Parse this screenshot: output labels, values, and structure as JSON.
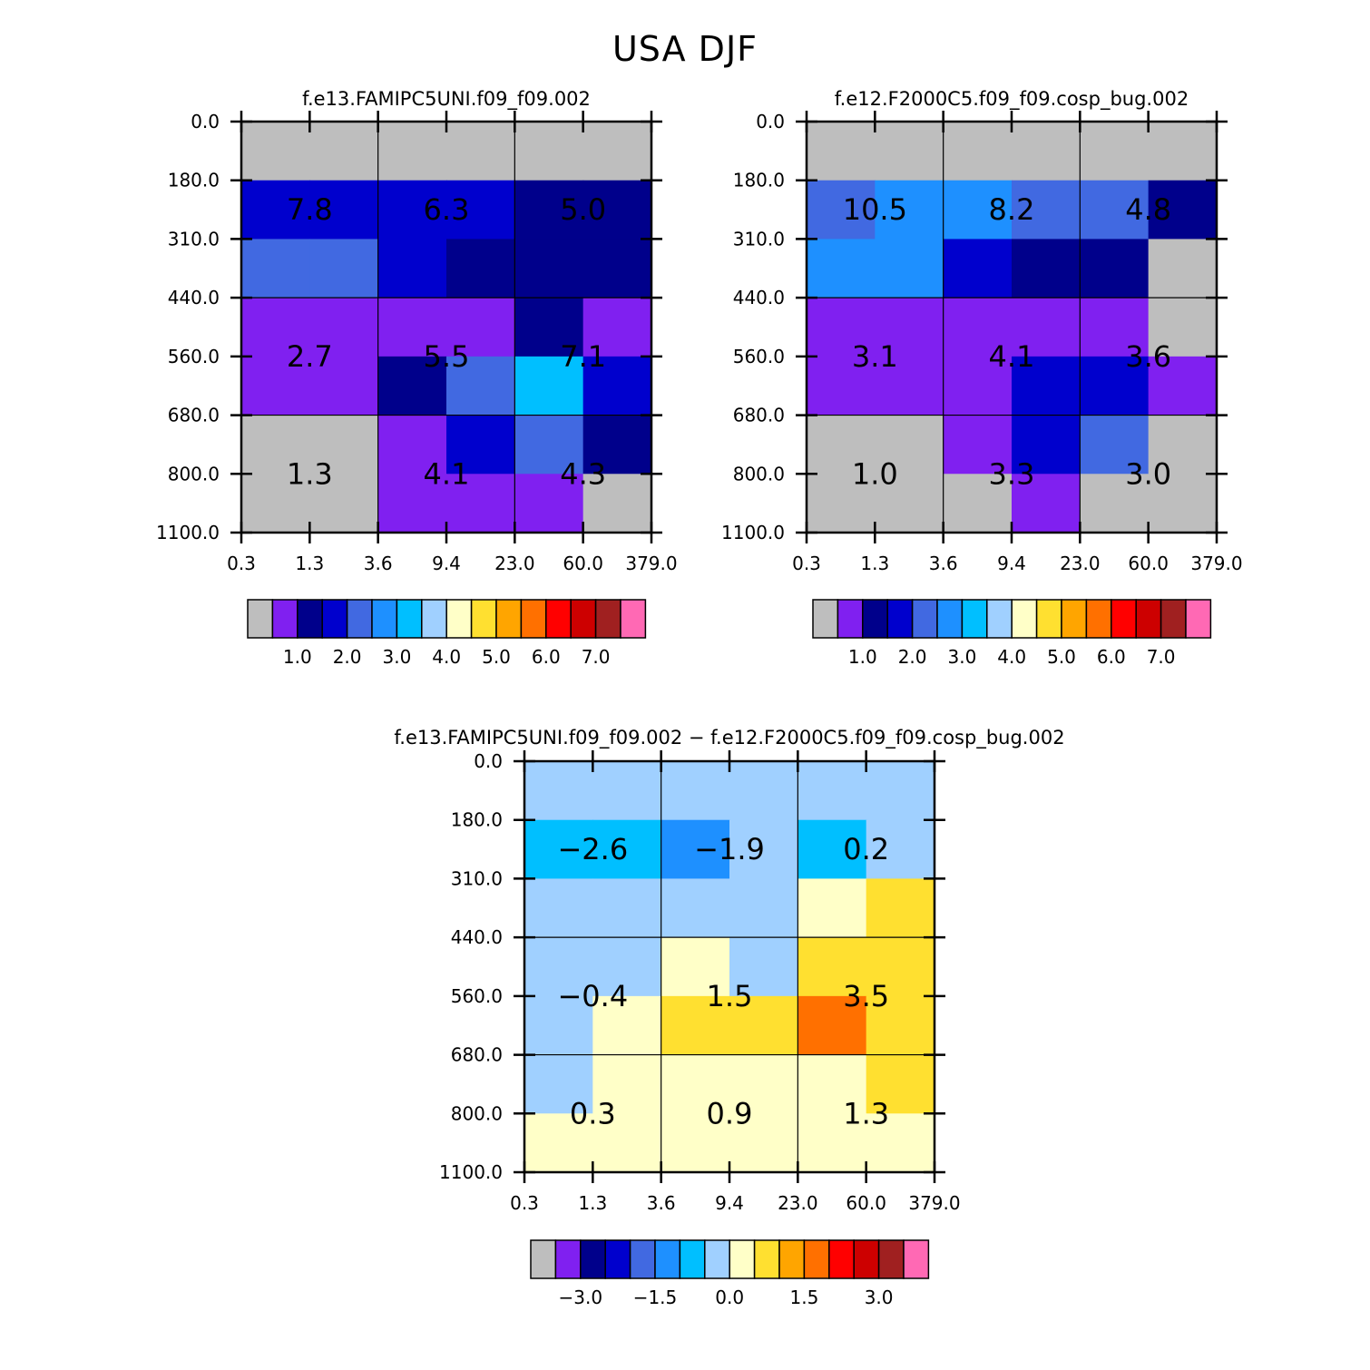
{
  "title": "USA DJF",
  "chart_data": [
    {
      "type": "heatmap",
      "title": "f.e13.FAMIPC5UNI.f09_f09.002",
      "xticks": [
        "0.3",
        "1.3",
        "3.6",
        "9.4",
        "23.0",
        "60.0",
        "379.0"
      ],
      "yticks": [
        "0.0",
        "180.0",
        "310.0",
        "440.0",
        "560.0",
        "680.0",
        "800.0",
        "1100.0"
      ],
      "cell_colors": [
        [
          "grey",
          "grey",
          "grey",
          "grey",
          "grey",
          "grey"
        ],
        [
          "blue",
          "blue",
          "blue",
          "blue",
          "navy",
          "navy"
        ],
        [
          "royalblue",
          "royalblue",
          "blue",
          "navy",
          "navy",
          "navy"
        ],
        [
          "purple",
          "purple",
          "purple",
          "purple",
          "navy",
          "purple"
        ],
        [
          "purple",
          "purple",
          "navy",
          "royalblue",
          "deepskyblue",
          "blue"
        ],
        [
          "grey",
          "grey",
          "purple",
          "blue",
          "royalblue",
          "navy"
        ],
        [
          "grey",
          "grey",
          "purple",
          "purple",
          "purple",
          "grey"
        ]
      ],
      "box_values": [
        [
          "7.8",
          "6.3",
          "5.0"
        ],
        [
          "2.7",
          "5.5",
          "7.1"
        ],
        [
          "1.3",
          "4.1",
          "4.3"
        ]
      ],
      "colorbar": {
        "colors": [
          "grey",
          "purple",
          "navy",
          "blue",
          "royalblue",
          "dodgerblue",
          "deepskyblue",
          "lightblue",
          "lightyellow",
          "gold",
          "orange",
          "darkorange",
          "red",
          "darkred",
          "brown",
          "pink"
        ],
        "labels": [
          "1.0",
          "2.0",
          "3.0",
          "4.0",
          "5.0",
          "6.0",
          "7.0"
        ]
      }
    },
    {
      "type": "heatmap",
      "title": "f.e12.F2000C5.f09_f09.cosp_bug.002",
      "xticks": [
        "0.3",
        "1.3",
        "3.6",
        "9.4",
        "23.0",
        "60.0",
        "379.0"
      ],
      "yticks": [
        "0.0",
        "180.0",
        "310.0",
        "440.0",
        "560.0",
        "680.0",
        "800.0",
        "1100.0"
      ],
      "cell_colors": [
        [
          "grey",
          "grey",
          "grey",
          "grey",
          "grey",
          "grey"
        ],
        [
          "royalblue",
          "dodgerblue",
          "dodgerblue",
          "royalblue",
          "royalblue",
          "navy"
        ],
        [
          "dodgerblue",
          "dodgerblue",
          "blue",
          "navy",
          "navy",
          "grey"
        ],
        [
          "purple",
          "purple",
          "purple",
          "purple",
          "purple",
          "grey"
        ],
        [
          "purple",
          "purple",
          "purple",
          "blue",
          "blue",
          "purple"
        ],
        [
          "grey",
          "grey",
          "purple",
          "blue",
          "royalblue",
          "grey"
        ],
        [
          "grey",
          "grey",
          "grey",
          "purple",
          "grey",
          "grey"
        ]
      ],
      "box_values": [
        [
          "10.5",
          "8.2",
          "4.8"
        ],
        [
          "3.1",
          "4.1",
          "3.6"
        ],
        [
          "1.0",
          "3.3",
          "3.0"
        ]
      ],
      "colorbar": {
        "colors": [
          "grey",
          "purple",
          "navy",
          "blue",
          "royalblue",
          "dodgerblue",
          "deepskyblue",
          "lightblue",
          "lightyellow",
          "gold",
          "orange",
          "darkorange",
          "red",
          "darkred",
          "brown",
          "pink"
        ],
        "labels": [
          "1.0",
          "2.0",
          "3.0",
          "4.0",
          "5.0",
          "6.0",
          "7.0"
        ]
      }
    },
    {
      "type": "heatmap",
      "title": "f.e13.FAMIPC5UNI.f09_f09.002 − f.e12.F2000C5.f09_f09.cosp_bug.002",
      "xticks": [
        "0.3",
        "1.3",
        "3.6",
        "9.4",
        "23.0",
        "60.0",
        "379.0"
      ],
      "yticks": [
        "0.0",
        "180.0",
        "310.0",
        "440.0",
        "560.0",
        "680.0",
        "800.0",
        "1100.0"
      ],
      "cell_colors": [
        [
          "lightblue",
          "lightblue",
          "lightblue",
          "lightblue",
          "lightblue",
          "lightblue"
        ],
        [
          "deepskyblue",
          "deepskyblue",
          "dodgerblue",
          "lightblue",
          "deepskyblue",
          "lightblue"
        ],
        [
          "lightblue",
          "lightblue",
          "lightblue",
          "lightblue",
          "lightyellow",
          "gold"
        ],
        [
          "lightblue",
          "lightblue",
          "lightyellow",
          "lightblue",
          "gold",
          "gold"
        ],
        [
          "lightblue",
          "lightyellow",
          "gold",
          "gold",
          "darkorange",
          "gold"
        ],
        [
          "lightblue",
          "lightyellow",
          "lightyellow",
          "lightyellow",
          "lightyellow",
          "gold"
        ],
        [
          "lightyellow",
          "lightyellow",
          "lightyellow",
          "lightyellow",
          "lightyellow",
          "lightyellow"
        ]
      ],
      "box_values": [
        [
          "−2.6",
          "−1.9",
          "0.2"
        ],
        [
          "−0.4",
          "1.5",
          "3.5"
        ],
        [
          "0.3",
          "0.9",
          "1.3"
        ]
      ],
      "colorbar": {
        "colors": [
          "grey",
          "purple",
          "navy",
          "blue",
          "royalblue",
          "dodgerblue",
          "deepskyblue",
          "lightblue",
          "lightyellow",
          "gold",
          "orange",
          "darkorange",
          "red",
          "darkred",
          "brown",
          "pink"
        ],
        "labels": [
          "−3.0",
          "−1.5",
          "0.0",
          "1.5",
          "3.0"
        ]
      }
    }
  ],
  "palette": {
    "grey": "#BEBEBE",
    "purple": "#8020F0",
    "navy": "#00008B",
    "blue": "#0000CD",
    "royalblue": "#4169E1",
    "dodgerblue": "#1E90FF",
    "deepskyblue": "#00BFFF",
    "lightblue": "#A0D0FF",
    "lightyellow": "#FFFFC8",
    "gold": "#FFE030",
    "orange": "#FFA500",
    "darkorange": "#FF7000",
    "red": "#FF0000",
    "darkred": "#CD0000",
    "brown": "#A02020",
    "pink": "#FF69B4"
  }
}
